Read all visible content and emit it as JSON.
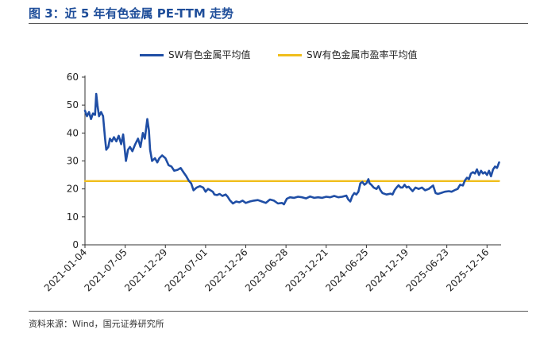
{
  "header": {
    "title": "图 3：近 5 年有色金属 PE-TTM 走势"
  },
  "footer": {
    "source": "资料来源：Wind，国元证券研究所"
  },
  "colors": {
    "pe_line": "#1F4EA5",
    "market_avg_line": "#F0BE1C",
    "title": "#1F4E9A"
  },
  "chart_data": {
    "type": "line",
    "title": "近 5 年有色金属 PE-TTM 走势",
    "xlabel": "",
    "ylabel": "",
    "ylim": [
      0,
      60
    ],
    "yticks": [
      "0",
      "10",
      "20",
      "30",
      "40",
      "50",
      "60"
    ],
    "x_tick_labels": [
      "2021-01-04",
      "2021-07-05",
      "2021-12-29",
      "2022-07-01",
      "2022-12-26",
      "2023-06-28",
      "2023-12-21",
      "2024-06-25",
      "2024-12-19",
      "2025-06-23",
      "2025-12-16"
    ],
    "x_range": [
      0,
      10.35
    ],
    "grid": false,
    "legend_position": "top",
    "series": [
      {
        "name": "SW有色金属平均值",
        "color": "#1F4EA5",
        "points": [
          [
            0.0,
            48
          ],
          [
            0.05,
            46
          ],
          [
            0.1,
            47.5
          ],
          [
            0.15,
            45
          ],
          [
            0.2,
            47
          ],
          [
            0.25,
            46.5
          ],
          [
            0.28,
            54
          ],
          [
            0.31,
            50
          ],
          [
            0.35,
            46
          ],
          [
            0.4,
            47.5
          ],
          [
            0.45,
            46
          ],
          [
            0.5,
            38
          ],
          [
            0.53,
            34
          ],
          [
            0.58,
            35
          ],
          [
            0.62,
            38
          ],
          [
            0.67,
            37
          ],
          [
            0.72,
            38.5
          ],
          [
            0.78,
            37
          ],
          [
            0.84,
            39
          ],
          [
            0.9,
            36
          ],
          [
            0.95,
            39.5
          ],
          [
            0.99,
            34
          ],
          [
            1.02,
            30
          ],
          [
            1.07,
            34
          ],
          [
            1.12,
            35
          ],
          [
            1.18,
            33.5
          ],
          [
            1.25,
            36
          ],
          [
            1.32,
            38
          ],
          [
            1.38,
            35
          ],
          [
            1.44,
            40
          ],
          [
            1.49,
            38
          ],
          [
            1.55,
            45
          ],
          [
            1.59,
            41
          ],
          [
            1.62,
            34
          ],
          [
            1.67,
            30
          ],
          [
            1.74,
            31
          ],
          [
            1.8,
            29.5
          ],
          [
            1.85,
            31
          ],
          [
            1.92,
            32
          ],
          [
            2.0,
            31
          ],
          [
            2.08,
            28.5
          ],
          [
            2.15,
            28
          ],
          [
            2.22,
            26.5
          ],
          [
            2.3,
            26.8
          ],
          [
            2.38,
            27.5
          ],
          [
            2.45,
            26
          ],
          [
            2.52,
            24.5
          ],
          [
            2.58,
            23
          ],
          [
            2.64,
            22
          ],
          [
            2.7,
            19.5
          ],
          [
            2.78,
            20.5
          ],
          [
            2.86,
            21
          ],
          [
            2.94,
            20.5
          ],
          [
            3.0,
            19
          ],
          [
            3.06,
            20
          ],
          [
            3.12,
            19.5
          ],
          [
            3.18,
            19
          ],
          [
            3.22,
            18
          ],
          [
            3.28,
            17.8
          ],
          [
            3.35,
            18.2
          ],
          [
            3.42,
            17.5
          ],
          [
            3.5,
            18
          ],
          [
            3.55,
            17.2
          ],
          [
            3.6,
            16
          ],
          [
            3.68,
            14.8
          ],
          [
            3.76,
            15.5
          ],
          [
            3.84,
            15.2
          ],
          [
            3.92,
            15.8
          ],
          [
            4.0,
            15
          ],
          [
            4.1,
            15.5
          ],
          [
            4.2,
            15.8
          ],
          [
            4.3,
            16
          ],
          [
            4.4,
            15.5
          ],
          [
            4.5,
            15
          ],
          [
            4.6,
            16.2
          ],
          [
            4.7,
            15.8
          ],
          [
            4.8,
            14.8
          ],
          [
            4.9,
            15
          ],
          [
            4.95,
            14.5
          ],
          [
            5.02,
            16.5
          ],
          [
            5.1,
            17
          ],
          [
            5.2,
            16.8
          ],
          [
            5.3,
            17.2
          ],
          [
            5.4,
            17
          ],
          [
            5.5,
            16.6
          ],
          [
            5.6,
            17.3
          ],
          [
            5.7,
            16.8
          ],
          [
            5.8,
            17
          ],
          [
            5.9,
            16.8
          ],
          [
            6.0,
            17.2
          ],
          [
            6.1,
            17
          ],
          [
            6.2,
            17.5
          ],
          [
            6.3,
            17
          ],
          [
            6.4,
            17.2
          ],
          [
            6.5,
            17.6
          ],
          [
            6.55,
            16.2
          ],
          [
            6.6,
            15.5
          ],
          [
            6.65,
            17.5
          ],
          [
            6.7,
            18.5
          ],
          [
            6.75,
            18
          ],
          [
            6.8,
            19
          ],
          [
            6.85,
            22
          ],
          [
            6.9,
            22.5
          ],
          [
            6.95,
            21.5
          ],
          [
            7.0,
            22
          ],
          [
            7.05,
            23.5
          ],
          [
            7.08,
            22
          ],
          [
            7.12,
            21.5
          ],
          [
            7.18,
            20.5
          ],
          [
            7.25,
            20
          ],
          [
            7.3,
            21
          ],
          [
            7.35,
            19.5
          ],
          [
            7.4,
            18.5
          ],
          [
            7.5,
            18
          ],
          [
            7.6,
            18.3
          ],
          [
            7.65,
            18
          ],
          [
            7.7,
            19.5
          ],
          [
            7.75,
            20.5
          ],
          [
            7.8,
            21.3
          ],
          [
            7.85,
            20.5
          ],
          [
            7.9,
            20.5
          ],
          [
            7.95,
            21.5
          ],
          [
            8.0,
            20.5
          ],
          [
            8.05,
            20.8
          ],
          [
            8.1,
            20
          ],
          [
            8.15,
            19.2
          ],
          [
            8.22,
            20.5
          ],
          [
            8.3,
            20
          ],
          [
            8.38,
            20.5
          ],
          [
            8.46,
            19.5
          ],
          [
            8.55,
            20
          ],
          [
            8.62,
            20.8
          ],
          [
            8.66,
            21.2
          ],
          [
            8.72,
            18.5
          ],
          [
            8.78,
            18.2
          ],
          [
            8.85,
            18.5
          ],
          [
            8.95,
            19
          ],
          [
            9.05,
            19.2
          ],
          [
            9.12,
            19
          ],
          [
            9.2,
            19.6
          ],
          [
            9.27,
            20
          ],
          [
            9.33,
            21.5
          ],
          [
            9.4,
            21.2
          ],
          [
            9.45,
            23
          ],
          [
            9.5,
            24
          ],
          [
            9.55,
            23.5
          ],
          [
            9.6,
            25.5
          ],
          [
            9.65,
            26
          ],
          [
            9.7,
            25.5
          ],
          [
            9.75,
            27
          ],
          [
            9.8,
            25
          ],
          [
            9.85,
            26.5
          ],
          [
            9.9,
            25.5
          ],
          [
            9.95,
            26
          ],
          [
            10.0,
            25
          ],
          [
            10.05,
            26.5
          ],
          [
            10.1,
            24.5
          ],
          [
            10.15,
            27
          ],
          [
            10.2,
            28
          ],
          [
            10.25,
            27.5
          ],
          [
            10.3,
            29.5
          ]
        ]
      },
      {
        "name": "SW有色金属市盈率平均值",
        "color": "#F0BE1C",
        "points": [
          [
            0.0,
            22.8
          ],
          [
            10.3,
            22.8
          ]
        ]
      }
    ]
  }
}
